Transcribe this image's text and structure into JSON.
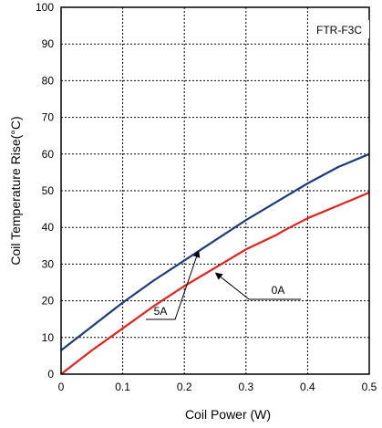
{
  "chart_data": {
    "type": "line",
    "title": "",
    "xlabel": "Coil Power (W)",
    "ylabel": "Coil Temperature Rise(°C)",
    "xlim": [
      0,
      0.5
    ],
    "ylim": [
      0,
      100
    ],
    "xticks": [
      "0",
      "0.1",
      "0.2",
      "0.3",
      "0.4",
      "0.5"
    ],
    "yticks": [
      "0",
      "10",
      "20",
      "30",
      "40",
      "50",
      "60",
      "70",
      "80",
      "90",
      "100"
    ],
    "grid": true,
    "model_label": "FTR-F3C",
    "series": [
      {
        "name": "5A",
        "color": "#1f3c7a",
        "x": [
          0,
          0.05,
          0.1,
          0.15,
          0.2,
          0.25,
          0.3,
          0.35,
          0.4,
          0.45,
          0.5
        ],
        "y": [
          6.5,
          13,
          19.5,
          25.5,
          31,
          36.5,
          42,
          47,
          52,
          56.5,
          60
        ]
      },
      {
        "name": "0A",
        "color": "#e2231a",
        "x": [
          0,
          0.05,
          0.1,
          0.15,
          0.2,
          0.25,
          0.3,
          0.35,
          0.36,
          0.4,
          0.45,
          0.5
        ],
        "y": [
          0,
          6.5,
          12.5,
          18.5,
          24,
          29,
          34,
          38,
          39,
          42.5,
          46,
          49.5
        ]
      }
    ],
    "annotations": [
      {
        "text": "5A",
        "series": "5A"
      },
      {
        "text": "0A",
        "series": "0A"
      }
    ]
  }
}
